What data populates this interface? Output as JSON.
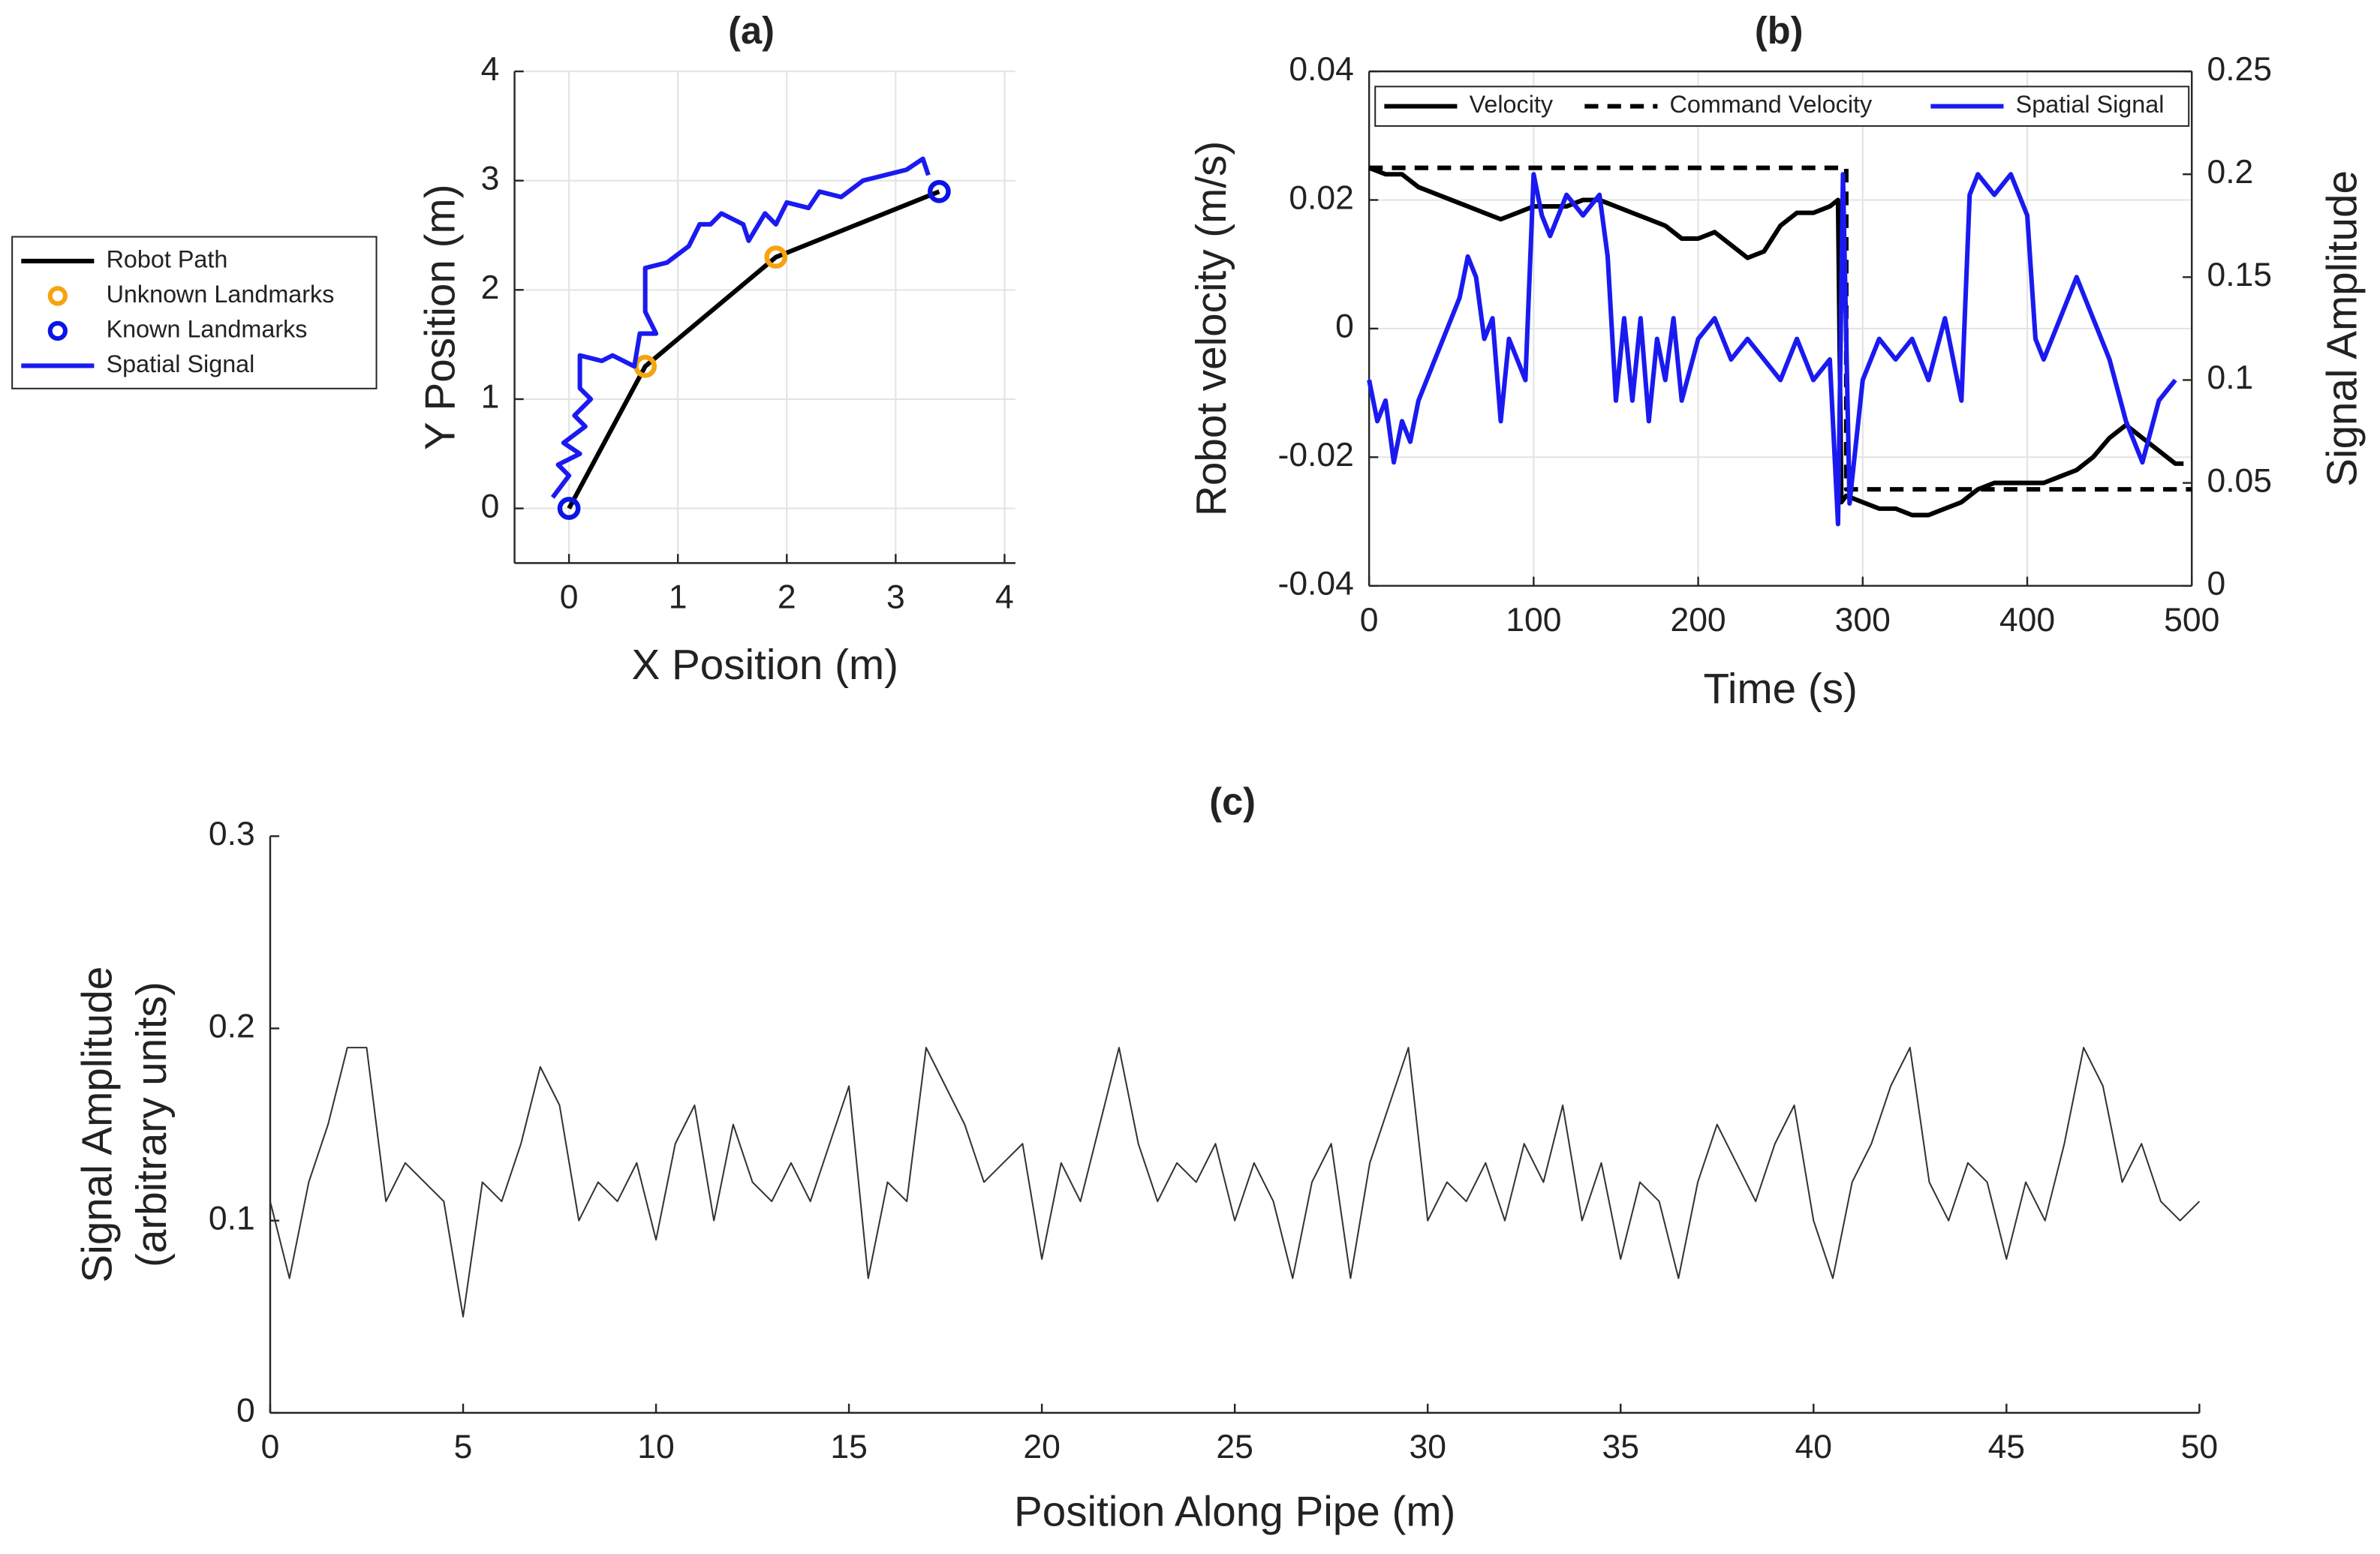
{
  "chart_data": [
    {
      "type": "line",
      "title": "(a)",
      "xlabel": "X Position (m)",
      "ylabel": "Y Position (m)",
      "xlim": [
        -0.5,
        4.1
      ],
      "ylim": [
        -0.5,
        4
      ],
      "xticks": [
        0,
        1,
        2,
        3,
        4
      ],
      "yticks": [
        0,
        1,
        2,
        3,
        4
      ],
      "grid": true,
      "legend": "outside-left",
      "series": [
        {
          "name": "Robot Path",
          "color": "#000000",
          "x": [
            0,
            0.7,
            1.9,
            3.4
          ],
          "values": [
            0,
            1.3,
            2.3,
            2.9
          ]
        },
        {
          "name": "Unknown Landmarks",
          "color": "#f5a30f",
          "marker": "circle",
          "x": [
            0.7,
            1.9
          ],
          "values": [
            1.3,
            2.3
          ]
        },
        {
          "name": "Known Landmarks",
          "color": "#0a14e6",
          "marker": "circle",
          "x": [
            0,
            3.4
          ],
          "values": [
            0,
            2.9
          ]
        },
        {
          "name": "Spatial Signal",
          "color": "#1a1af0",
          "x": [
            -0.15,
            0,
            -0.1,
            0.1,
            -0.05,
            0.15,
            0.05,
            0.2,
            0.1,
            0.1,
            0.3,
            0.4,
            0.6,
            0.65,
            0.8,
            0.7,
            0.7,
            0.9,
            1.1,
            1.2,
            1.3,
            1.4,
            1.6,
            1.65,
            1.8,
            1.9,
            2.0,
            2.2,
            2.3,
            2.5,
            2.7,
            2.9,
            3.1,
            3.25,
            3.3
          ],
          "values": [
            0.1,
            0.3,
            0.4,
            0.5,
            0.6,
            0.75,
            0.85,
            1.0,
            1.1,
            1.4,
            1.35,
            1.4,
            1.3,
            1.6,
            1.6,
            1.8,
            2.2,
            2.25,
            2.4,
            2.6,
            2.6,
            2.7,
            2.6,
            2.45,
            2.7,
            2.6,
            2.8,
            2.75,
            2.9,
            2.85,
            3.0,
            3.05,
            3.1,
            3.2,
            3.05
          ]
        }
      ]
    },
    {
      "type": "line",
      "title": "(b)",
      "xlabel": "Time (s)",
      "ylabel": "Robot velocity (m/s)",
      "y2label": "Signal Amplitude",
      "xlim": [
        0,
        500
      ],
      "ylim": [
        -0.04,
        0.04
      ],
      "y2lim": [
        0,
        0.25
      ],
      "xticks": [
        0,
        100,
        200,
        300,
        400,
        500
      ],
      "yticks": [
        -0.04,
        -0.02,
        0,
        0.02,
        0.04
      ],
      "y2ticks": [
        0,
        0.05,
        0.1,
        0.15,
        0.2,
        0.25
      ],
      "grid": true,
      "legend": "top",
      "series": [
        {
          "name": "Velocity",
          "color": "#000000",
          "x": [
            0,
            10,
            20,
            30,
            40,
            50,
            60,
            70,
            80,
            90,
            100,
            110,
            120,
            130,
            140,
            150,
            160,
            170,
            180,
            190,
            200,
            210,
            220,
            230,
            240,
            250,
            260,
            270,
            280,
            285,
            287,
            290,
            300,
            310,
            320,
            330,
            340,
            350,
            360,
            370,
            380,
            390,
            400,
            410,
            420,
            430,
            440,
            450,
            460,
            470,
            480,
            490,
            495
          ],
          "values": [
            0.025,
            0.024,
            0.024,
            0.022,
            0.021,
            0.02,
            0.019,
            0.018,
            0.017,
            0.018,
            0.019,
            0.019,
            0.019,
            0.02,
            0.02,
            0.019,
            0.018,
            0.017,
            0.016,
            0.014,
            0.014,
            0.015,
            0.013,
            0.011,
            0.012,
            0.016,
            0.018,
            0.018,
            0.019,
            0.02,
            -0.027,
            -0.026,
            -0.027,
            -0.028,
            -0.028,
            -0.029,
            -0.029,
            -0.028,
            -0.027,
            -0.025,
            -0.024,
            -0.024,
            -0.024,
            -0.024,
            -0.023,
            -0.022,
            -0.02,
            -0.017,
            -0.015,
            -0.017,
            -0.019,
            -0.021,
            -0.021
          ]
        },
        {
          "name": "Command Velocity",
          "color": "#000000",
          "dash": true,
          "x": [
            0,
            290,
            290,
            500
          ],
          "values": [
            0.025,
            0.025,
            -0.025,
            -0.025
          ]
        },
        {
          "name": "Spatial Signal",
          "color": "#1a1af0",
          "axis": "y2",
          "x": [
            0,
            5,
            10,
            15,
            20,
            25,
            30,
            35,
            40,
            45,
            50,
            55,
            60,
            65,
            70,
            75,
            80,
            85,
            90,
            95,
            100,
            105,
            110,
            120,
            130,
            140,
            145,
            150,
            155,
            160,
            165,
            170,
            175,
            180,
            185,
            190,
            200,
            210,
            220,
            230,
            240,
            250,
            260,
            270,
            280,
            285,
            288,
            292,
            300,
            310,
            320,
            330,
            340,
            350,
            360,
            365,
            370,
            380,
            390,
            400,
            405,
            410,
            420,
            430,
            440,
            450,
            460,
            470,
            480,
            490
          ],
          "values": [
            0.1,
            0.08,
            0.09,
            0.06,
            0.08,
            0.07,
            0.09,
            0.1,
            0.11,
            0.12,
            0.13,
            0.14,
            0.16,
            0.15,
            0.12,
            0.13,
            0.08,
            0.12,
            0.11,
            0.1,
            0.2,
            0.18,
            0.17,
            0.19,
            0.18,
            0.19,
            0.16,
            0.09,
            0.13,
            0.09,
            0.13,
            0.08,
            0.12,
            0.1,
            0.13,
            0.09,
            0.12,
            0.13,
            0.11,
            0.12,
            0.11,
            0.1,
            0.12,
            0.1,
            0.11,
            0.03,
            0.2,
            0.04,
            0.1,
            0.12,
            0.11,
            0.12,
            0.1,
            0.13,
            0.09,
            0.19,
            0.2,
            0.19,
            0.2,
            0.18,
            0.12,
            0.11,
            0.13,
            0.15,
            0.13,
            0.11,
            0.08,
            0.06,
            0.09,
            0.1
          ]
        }
      ]
    },
    {
      "type": "line",
      "title": "(c)",
      "xlabel": "Position Along Pipe (m)",
      "ylabel": [
        "Signal Amplitude",
        "(arbitrary units)"
      ],
      "xlim": [
        0,
        50
      ],
      "ylim": [
        0,
        0.3
      ],
      "xticks": [
        0,
        5,
        10,
        15,
        20,
        25,
        30,
        35,
        40,
        45,
        50
      ],
      "yticks": [
        0,
        0.1,
        0.2,
        0.3
      ],
      "grid": false,
      "color": "#333333",
      "x": [
        0,
        0.5,
        1,
        1.5,
        2,
        2.5,
        3,
        3.5,
        4,
        4.5,
        5,
        5.5,
        6,
        6.5,
        7,
        7.5,
        8,
        8.5,
        9,
        9.5,
        10,
        10.5,
        11,
        11.5,
        12,
        12.5,
        13,
        13.5,
        14,
        14.5,
        15,
        15.5,
        16,
        16.5,
        17,
        17.5,
        18,
        18.5,
        19,
        19.5,
        20,
        20.5,
        21,
        21.5,
        22,
        22.5,
        23,
        23.5,
        24,
        24.5,
        25,
        25.5,
        26,
        26.5,
        27,
        27.5,
        28,
        28.5,
        29,
        29.5,
        30,
        30.5,
        31,
        31.5,
        32,
        32.5,
        33,
        33.5,
        34,
        34.5,
        35,
        35.5,
        36,
        36.5,
        37,
        37.5,
        38,
        38.5,
        39,
        39.5,
        40,
        40.5,
        41,
        41.5,
        42,
        42.5,
        43,
        43.5,
        44,
        44.5,
        45,
        45.5,
        46,
        46.5,
        47,
        47.5,
        48,
        48.5,
        49,
        49.5,
        50
      ],
      "values": [
        0.11,
        0.07,
        0.12,
        0.15,
        0.19,
        0.19,
        0.11,
        0.13,
        0.12,
        0.11,
        0.05,
        0.12,
        0.11,
        0.14,
        0.18,
        0.16,
        0.1,
        0.12,
        0.11,
        0.13,
        0.09,
        0.14,
        0.16,
        0.1,
        0.15,
        0.12,
        0.11,
        0.13,
        0.11,
        0.14,
        0.17,
        0.07,
        0.12,
        0.11,
        0.19,
        0.17,
        0.15,
        0.12,
        0.13,
        0.14,
        0.08,
        0.13,
        0.11,
        0.15,
        0.19,
        0.14,
        0.11,
        0.13,
        0.12,
        0.14,
        0.1,
        0.13,
        0.11,
        0.07,
        0.12,
        0.14,
        0.07,
        0.13,
        0.16,
        0.19,
        0.1,
        0.12,
        0.11,
        0.13,
        0.1,
        0.14,
        0.12,
        0.16,
        0.1,
        0.13,
        0.08,
        0.12,
        0.11,
        0.07,
        0.12,
        0.15,
        0.13,
        0.11,
        0.14,
        0.16,
        0.1,
        0.07,
        0.12,
        0.14,
        0.17,
        0.19,
        0.12,
        0.1,
        0.13,
        0.12,
        0.08,
        0.12,
        0.1,
        0.14,
        0.19,
        0.17,
        0.12,
        0.14,
        0.11,
        0.1,
        0.11
      ]
    }
  ]
}
